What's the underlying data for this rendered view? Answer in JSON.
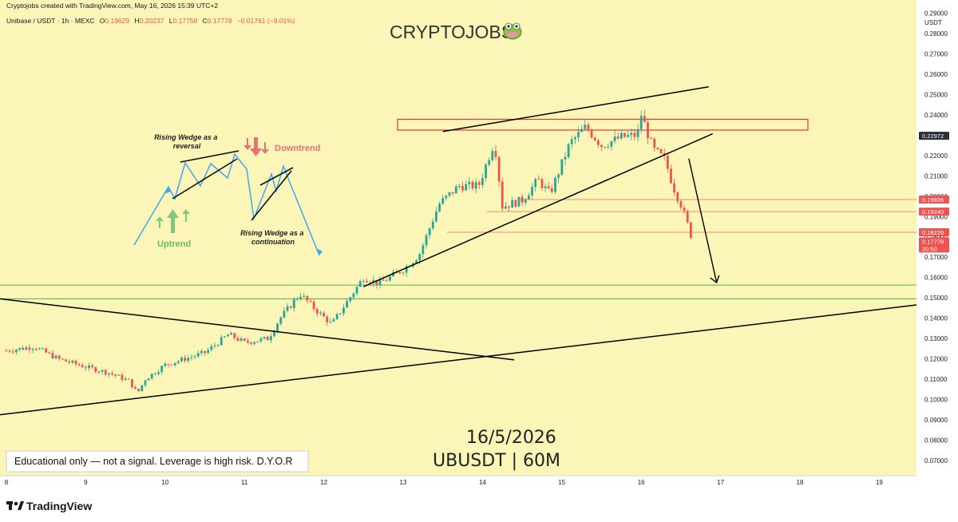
{
  "header": {
    "created": "Cryptojobs created with TradingView.com, May 16, 2026 15:39 UTC+2",
    "symbol_info": "Unibase / USDT · 1h · MEXC",
    "o_label": "O",
    "o_value": "0.19629",
    "h_label": "H",
    "h_value": "0.20237",
    "l_label": "L",
    "l_value": "0.17758",
    "c_label": "C",
    "c_value": "0.17778",
    "change": "−0.01761 (−9.01%)"
  },
  "brand_title": "CRYPTOJOBS",
  "brand_icon": "frog-icon",
  "date_text": "16/5/2026",
  "pair_text": "UBUSDT | 60M",
  "disclaimer": "Educational only — not a signal. Leverage is high risk. D.Y.O.R",
  "footer_logo": "TradingView",
  "currency": "USDT",
  "colors": {
    "background": "#fbf5b7",
    "bull": "#26a69a",
    "bear": "#ef5350",
    "zone_red": "#e53935",
    "green_line": "#4caf50",
    "wedge_blue": "#42a5f5",
    "trendline": "#000000"
  },
  "price_tags": [
    {
      "value": "0.22972",
      "price": 0.22972,
      "color": "#2a2e39"
    },
    {
      "value": "0.19836",
      "price": 0.19836,
      "color": "#ef5350"
    },
    {
      "value": "0.19240",
      "price": 0.1924,
      "color": "#ef5350"
    },
    {
      "value": "0.18226",
      "price": 0.18226,
      "color": "#ef5350"
    },
    {
      "value": "0.17778",
      "price": 0.17778,
      "color": "#ef5350",
      "sub": "20:50"
    }
  ],
  "annotations": {
    "rw_reversal": "Rising Wedge as a reversal",
    "rw_continuation": "Rising Wedge as a continuation",
    "downtrend": "Downtrend",
    "uptrend": "Uptrend"
  },
  "chart_data": {
    "type": "candlestick",
    "title": "CRYPTOJOBS",
    "x_axis_labels": [
      "8",
      "9",
      "10",
      "11",
      "12",
      "13",
      "14",
      "15",
      "16",
      "17",
      "18",
      "19"
    ],
    "x_range_days": [
      8,
      19.5
    ],
    "y_tick_labels": [
      "0.29000",
      "0.28000",
      "0.27000",
      "0.26000",
      "0.25000",
      "0.24000",
      "0.23000",
      "0.22000",
      "0.21000",
      "0.20000",
      "0.19000",
      "0.18000",
      "0.17000",
      "0.16000",
      "0.15000",
      "0.14000",
      "0.13000",
      "0.12000",
      "0.11000",
      "0.10000",
      "0.09000",
      "0.08000",
      "0.07000"
    ],
    "ylim": [
      0.0625,
      0.2965
    ],
    "y_position": "right",
    "close_anchors": [
      [
        8.0,
        0.124
      ],
      [
        8.35,
        0.126
      ],
      [
        8.65,
        0.12
      ],
      [
        9.0,
        0.116
      ],
      [
        9.3,
        0.113
      ],
      [
        9.55,
        0.109
      ],
      [
        9.65,
        0.103
      ],
      [
        9.75,
        0.11
      ],
      [
        10.0,
        0.117
      ],
      [
        10.5,
        0.123
      ],
      [
        10.8,
        0.132
      ],
      [
        11.0,
        0.128
      ],
      [
        11.3,
        0.13
      ],
      [
        11.45,
        0.14
      ],
      [
        11.7,
        0.152
      ],
      [
        11.9,
        0.144
      ],
      [
        12.1,
        0.137
      ],
      [
        12.5,
        0.16
      ],
      [
        12.7,
        0.157
      ],
      [
        13.0,
        0.164
      ],
      [
        13.2,
        0.171
      ],
      [
        13.45,
        0.196
      ],
      [
        13.7,
        0.205
      ],
      [
        13.95,
        0.205
      ],
      [
        14.15,
        0.227
      ],
      [
        14.25,
        0.195
      ],
      [
        14.5,
        0.198
      ],
      [
        14.7,
        0.208
      ],
      [
        14.85,
        0.201
      ],
      [
        15.1,
        0.226
      ],
      [
        15.3,
        0.234
      ],
      [
        15.5,
        0.225
      ],
      [
        15.75,
        0.229
      ],
      [
        15.95,
        0.23
      ],
      [
        16.0,
        0.24
      ],
      [
        16.15,
        0.223
      ],
      [
        16.3,
        0.218
      ],
      [
        16.4,
        0.205
      ],
      [
        16.5,
        0.196
      ],
      [
        16.6,
        0.184
      ],
      [
        16.65,
        0.1778
      ]
    ],
    "resistance_zone": [
      0.2325,
      0.2378
    ],
    "support_lines": [
      0.1563,
      0.1495
    ],
    "red_levels": [
      0.19836,
      0.1924,
      0.18226
    ]
  }
}
